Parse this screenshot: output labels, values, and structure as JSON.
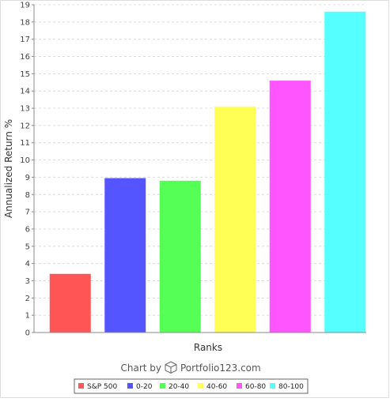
{
  "chart_data": {
    "type": "bar",
    "title": "",
    "xlabel": "Ranks",
    "ylabel": "Annualized Return %",
    "categories": [
      "S&P 500",
      "0-20",
      "20-40",
      "40-60",
      "60-80",
      "80-100"
    ],
    "values": [
      3.4,
      8.95,
      8.8,
      13.1,
      14.6,
      18.6
    ],
    "colors": [
      "#ff5555",
      "#5555ff",
      "#55ff55",
      "#ffff55",
      "#ff55ff",
      "#55ffff"
    ],
    "ylim": [
      0,
      19
    ],
    "yticks": [
      0,
      1,
      2,
      3,
      4,
      5,
      6,
      7,
      8,
      9,
      10,
      11,
      12,
      13,
      14,
      15,
      16,
      17,
      18,
      19
    ],
    "grid": true,
    "legend": {
      "position": "bottom",
      "entries": [
        "S&P 500",
        "0-20",
        "20-40",
        "40-60",
        "60-80",
        "80-100"
      ]
    }
  },
  "credit": {
    "prefix": "Chart by",
    "brand": "Portfolio123.com",
    "icon": "cube-icon"
  }
}
